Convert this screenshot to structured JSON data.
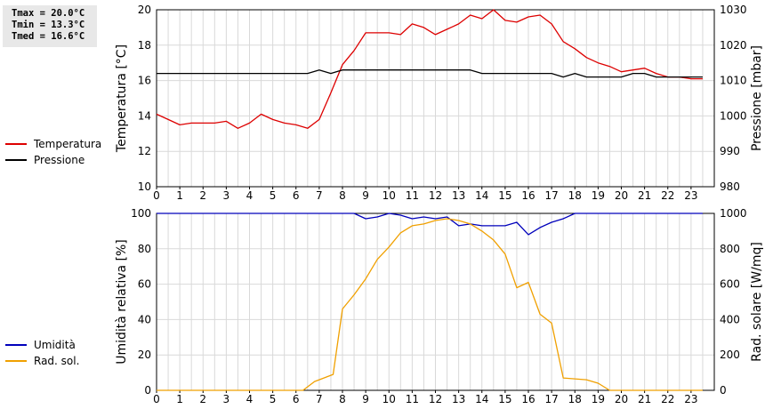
{
  "stats": {
    "tmax": "Tmax = 20.0°C",
    "tmin": "Tmin = 13.3°C",
    "tmed": "Tmed = 16.6°C"
  },
  "chart_data": [
    {
      "type": "line",
      "ylabel_left": "Temperatura [°C]",
      "ylabel_right": "Pressione [mbar]",
      "xlim": [
        0,
        24
      ],
      "ylim_left": [
        10,
        20
      ],
      "ylim_right": [
        980,
        1030
      ],
      "x_ticks": [
        "0",
        "1",
        "2",
        "3",
        "4",
        "5",
        "6",
        "7",
        "8",
        "9",
        "10",
        "11",
        "12",
        "13",
        "14",
        "15",
        "16",
        "17",
        "18",
        "19",
        "20",
        "21",
        "22",
        "23"
      ],
      "y_ticks_left": [
        "10",
        "12",
        "14",
        "16",
        "18",
        "20"
      ],
      "y_ticks_right": [
        "980",
        "990",
        "1000",
        "1010",
        "1020",
        "1030"
      ],
      "grid": true,
      "series": [
        {
          "name": "Temperatura",
          "axis": "left",
          "color": "#dd0000",
          "x": [
            0,
            0.5,
            1,
            1.5,
            2,
            2.5,
            3,
            3.5,
            4,
            4.5,
            5,
            5.5,
            6,
            6.5,
            7,
            7.5,
            8,
            8.5,
            9,
            9.5,
            10,
            10.5,
            11,
            11.5,
            12,
            12.5,
            13,
            13.5,
            14,
            14.5,
            15,
            15.5,
            16,
            16.5,
            17,
            17.5,
            18,
            18.5,
            19,
            19.5,
            20,
            20.5,
            21,
            21.5,
            22,
            22.5,
            23,
            23.5
          ],
          "y": [
            14.1,
            13.8,
            13.5,
            13.6,
            13.6,
            13.6,
            13.7,
            13.3,
            13.6,
            14.1,
            13.8,
            13.6,
            13.5,
            13.3,
            13.8,
            15.3,
            16.9,
            17.7,
            18.7,
            18.7,
            18.7,
            18.6,
            19.2,
            19.0,
            18.6,
            18.9,
            19.2,
            19.7,
            19.5,
            20.0,
            19.4,
            19.3,
            19.6,
            19.7,
            19.2,
            18.2,
            17.8,
            17.3,
            17.0,
            16.8,
            16.5,
            16.6,
            16.7,
            16.4,
            16.2,
            16.2,
            16.1,
            16.1
          ]
        },
        {
          "name": "Pressione",
          "axis": "right",
          "color": "#000000",
          "x": [
            0,
            1,
            2,
            3,
            4,
            5,
            6,
            6.5,
            7,
            7.5,
            8,
            9,
            10,
            11,
            12,
            13,
            13.5,
            14,
            15,
            16,
            17,
            17.5,
            18,
            18.5,
            19,
            20,
            20.5,
            21,
            21.5,
            22,
            23,
            23.5
          ],
          "y": [
            1012,
            1012,
            1012,
            1012,
            1012,
            1012,
            1012,
            1012,
            1013,
            1012,
            1013,
            1013,
            1013,
            1013,
            1013,
            1013,
            1013,
            1012,
            1012,
            1012,
            1012,
            1011,
            1012,
            1011,
            1011,
            1011,
            1012,
            1012,
            1011,
            1011,
            1011,
            1011
          ]
        }
      ]
    },
    {
      "type": "line",
      "ylabel_left": "Umidità relativa [%]",
      "ylabel_right": "Rad. solare [W/mq]",
      "xlim": [
        0,
        24
      ],
      "ylim_left": [
        0,
        100
      ],
      "ylim_right": [
        0,
        1000
      ],
      "x_ticks": [
        "0",
        "1",
        "2",
        "3",
        "4",
        "5",
        "6",
        "7",
        "8",
        "9",
        "10",
        "11",
        "12",
        "13",
        "14",
        "15",
        "16",
        "17",
        "18",
        "19",
        "20",
        "21",
        "22",
        "23"
      ],
      "y_ticks_left": [
        "0",
        "20",
        "40",
        "60",
        "80",
        "100"
      ],
      "y_ticks_right": [
        "0",
        "200",
        "400",
        "600",
        "800",
        "1000"
      ],
      "grid": true,
      "series": [
        {
          "name": "Umidità",
          "axis": "left",
          "color": "#0000bb",
          "x": [
            0,
            1,
            2,
            3,
            4,
            5,
            6,
            7,
            8,
            8.5,
            9,
            9.5,
            10,
            10.5,
            11,
            11.5,
            12,
            12.5,
            13,
            13.5,
            14,
            14.5,
            15,
            15.5,
            16,
            16.5,
            17,
            17.5,
            18,
            19,
            20,
            21,
            22,
            23,
            23.5
          ],
          "y": [
            100,
            100,
            100,
            100,
            100,
            100,
            100,
            100,
            100,
            100,
            97,
            98,
            100,
            99,
            97,
            98,
            97,
            98,
            93,
            94,
            93,
            93,
            93,
            95,
            88,
            92,
            95,
            97,
            100,
            100,
            100,
            100,
            100,
            100,
            100
          ]
        },
        {
          "name": "Rad. sol.",
          "axis": "right",
          "color": "#f0a000",
          "x": [
            0,
            1,
            2,
            3,
            4,
            5,
            6,
            6.3,
            6.8,
            7.2,
            7.6,
            8,
            8.5,
            9,
            9.5,
            10,
            10.5,
            11,
            11.5,
            12,
            12.5,
            13,
            13.5,
            14,
            14.5,
            15,
            15.5,
            16,
            16.5,
            17,
            17.5,
            18,
            18.5,
            19,
            19.5,
            20,
            21,
            22,
            23,
            23.5
          ],
          "y": [
            0,
            0,
            0,
            0,
            0,
            0,
            0,
            0,
            50,
            70,
            90,
            460,
            540,
            630,
            740,
            810,
            890,
            930,
            940,
            960,
            970,
            960,
            940,
            900,
            850,
            770,
            580,
            610,
            430,
            380,
            70,
            65,
            60,
            40,
            0,
            0,
            0,
            0,
            0,
            0
          ]
        }
      ]
    }
  ],
  "legends": [
    {
      "items": [
        {
          "label": "Temperatura",
          "color": "#dd0000"
        },
        {
          "label": "Pressione",
          "color": "#000000"
        }
      ]
    },
    {
      "items": [
        {
          "label": "Umidità",
          "color": "#0000bb"
        },
        {
          "label": "Rad. sol.",
          "color": "#f0a000"
        }
      ]
    }
  ]
}
